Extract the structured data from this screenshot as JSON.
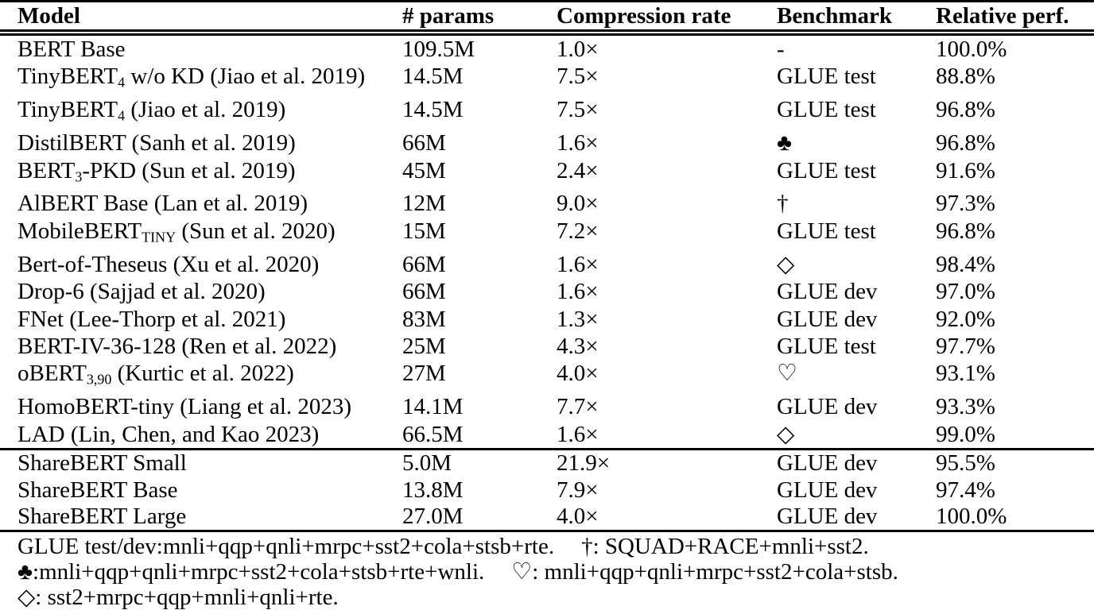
{
  "table": {
    "columns": [
      "Model",
      "# params",
      "Compression rate",
      "Benchmark",
      "Relative perf."
    ],
    "rows": [
      {
        "model": [
          {
            "t": "BERT Base"
          }
        ],
        "params": "109.5M",
        "rate": "1.0×",
        "benchmark": "-",
        "perf": "100.0%"
      },
      {
        "model": [
          {
            "t": "TinyBERT"
          },
          {
            "t": "4",
            "sub": true
          },
          {
            "t": " w/o KD (Jiao et al. 2019)"
          }
        ],
        "params": "14.5M",
        "rate": "7.5×",
        "benchmark": "GLUE test",
        "perf": "88.8%"
      },
      {
        "model": [
          {
            "t": "TinyBERT"
          },
          {
            "t": "4",
            "sub": true
          },
          {
            "t": " (Jiao et al. 2019)"
          }
        ],
        "params": "14.5M",
        "rate": "7.5×",
        "benchmark": "GLUE test",
        "perf": "96.8%"
      },
      {
        "model": [
          {
            "t": "DistilBERT (Sanh et al. 2019)"
          }
        ],
        "params": "66M",
        "rate": "1.6×",
        "benchmark": "♣",
        "perf": "96.8%"
      },
      {
        "model": [
          {
            "t": "BERT"
          },
          {
            "t": "3",
            "sub": true
          },
          {
            "t": "-PKD (Sun et al. 2019)"
          }
        ],
        "params": "45M",
        "rate": "2.4×",
        "benchmark": "GLUE test",
        "perf": "91.6%"
      },
      {
        "model": [
          {
            "t": "AlBERT Base (Lan et al. 2019)"
          }
        ],
        "params": "12M",
        "rate": "9.0×",
        "benchmark": "†",
        "perf": "97.3%"
      },
      {
        "model": [
          {
            "t": "MobileBERT"
          },
          {
            "t": "TINY",
            "sub": true
          },
          {
            "t": " (Sun et al. 2020)"
          }
        ],
        "params": "15M",
        "rate": "7.2×",
        "benchmark": "GLUE test",
        "perf": "96.8%"
      },
      {
        "model": [
          {
            "t": "Bert-of-Theseus (Xu et al. 2020)"
          }
        ],
        "params": "66M",
        "rate": "1.6×",
        "benchmark": "◇",
        "perf": "98.4%"
      },
      {
        "model": [
          {
            "t": "Drop-6 (Sajjad et al. 2020)"
          }
        ],
        "params": "66M",
        "rate": "1.6×",
        "benchmark": "GLUE dev",
        "perf": "97.0%"
      },
      {
        "model": [
          {
            "t": "FNet (Lee-Thorp et al. 2021)"
          }
        ],
        "params": "83M",
        "rate": "1.3×",
        "benchmark": "GLUE dev",
        "perf": "92.0%"
      },
      {
        "model": [
          {
            "t": "BERT-IV-36-128 (Ren et al. 2022)"
          }
        ],
        "params": "25M",
        "rate": "4.3×",
        "benchmark": "GLUE test",
        "perf": "97.7%"
      },
      {
        "model": [
          {
            "t": "oBERT"
          },
          {
            "t": "3,90",
            "sub": true
          },
          {
            "t": " (Kurtic et al. 2022)"
          }
        ],
        "params": "27M",
        "rate": "4.0×",
        "benchmark": "♡",
        "perf": "93.1%"
      },
      {
        "model": [
          {
            "t": "HomoBERT-tiny (Liang et al. 2023)"
          }
        ],
        "params": "14.1M",
        "rate": "7.7×",
        "benchmark": "GLUE dev",
        "perf": "93.3%"
      },
      {
        "model": [
          {
            "t": "LAD (Lin, Chen, and Kao 2023)"
          }
        ],
        "params": "66.5M",
        "rate": "1.6×",
        "benchmark": "◇",
        "perf": "99.0%"
      }
    ],
    "share_rows": [
      {
        "model": [
          {
            "t": "ShareBERT Small"
          }
        ],
        "params": "5.0M",
        "rate": "21.9×",
        "benchmark": "GLUE dev",
        "perf": "95.5%"
      },
      {
        "model": [
          {
            "t": "ShareBERT Base"
          }
        ],
        "params": "13.8M",
        "rate": "7.9×",
        "benchmark": "GLUE dev",
        "perf": "97.4%"
      },
      {
        "model": [
          {
            "t": "ShareBERT Large"
          }
        ],
        "params": "27.0M",
        "rate": "4.0×",
        "benchmark": "GLUE dev",
        "perf": "100.0%"
      }
    ]
  },
  "footnotes": {
    "lines": [
      [
        "GLUE test/dev:mnli+qqp+qnli+mrpc+sst2+cola+stsb+rte.",
        "†: SQUAD+RACE+mnli+sst2."
      ],
      [
        "♣:mnli+qqp+qnli+mrpc+sst2+cola+stsb+rte+wnli.",
        "♡: mnli+qqp+qnli+mrpc+sst2+cola+stsb."
      ],
      [
        "◇: sst2+mrpc+qqp+mnli+qnli+rte."
      ]
    ]
  },
  "colors": {
    "text": "#000000",
    "background": "#ffffff",
    "rule": "#000000"
  }
}
